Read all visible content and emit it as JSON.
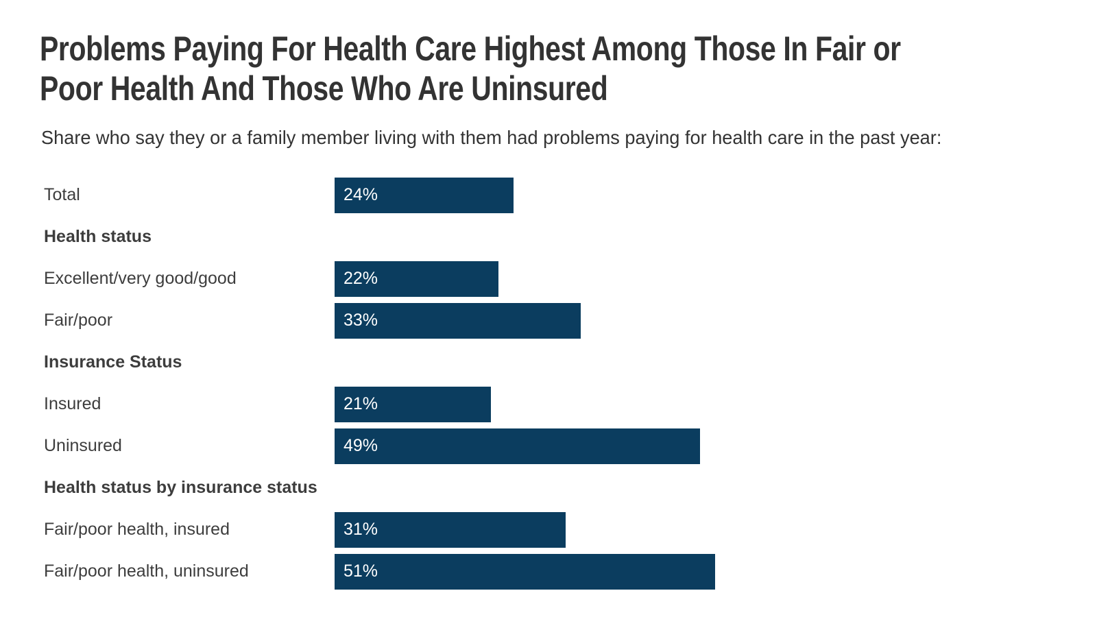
{
  "page": {
    "background_color": "#ffffff"
  },
  "header": {
    "title_line1": "Problems Paying For Health Care Highest Among Those In Fair or",
    "title_line2": "Poor Health And Those Who Are Uninsured",
    "subtitle": "Share who say they or a family member living with them had problems paying for health care in the past year:"
  },
  "chart_data": {
    "type": "bar",
    "orientation": "horizontal",
    "title": "Problems Paying For Health Care Highest Among Those In Fair or Poor Health And Those Who Are Uninsured",
    "subtitle": "Share who say they or a family member living with them had problems paying for health care in the past year:",
    "xlim": [
      0,
      100
    ],
    "value_suffix": "%",
    "grid": false,
    "legend": false,
    "axis_visible": false,
    "bar_color": "#0B3D5F",
    "value_label_color": "#ffffff",
    "label_color": "#3d3d3d",
    "categories": [
      "Total",
      "Excellent/very good/good",
      "Fair/poor",
      "Insured",
      "Uninsured",
      "Fair/poor health, insured",
      "Fair/poor health, uninsured"
    ],
    "values": [
      24,
      22,
      33,
      21,
      49,
      31,
      51
    ],
    "groups": [
      "Health status",
      "Insurance Status",
      "Health status by insurance status"
    ],
    "rows": [
      {
        "kind": "bar",
        "label": "Total",
        "value": 24,
        "display": "24%"
      },
      {
        "kind": "header",
        "label": "Health status"
      },
      {
        "kind": "bar",
        "label": "Excellent/very good/good",
        "value": 22,
        "display": "22%"
      },
      {
        "kind": "bar",
        "label": "Fair/poor",
        "value": 33,
        "display": "33%"
      },
      {
        "kind": "header",
        "label": "Insurance Status"
      },
      {
        "kind": "bar",
        "label": "Insured",
        "value": 21,
        "display": "21%"
      },
      {
        "kind": "bar",
        "label": "Uninsured",
        "value": 49,
        "display": "49%"
      },
      {
        "kind": "header",
        "label": "Health status by insurance status"
      },
      {
        "kind": "bar",
        "label": "Fair/poor health, insured",
        "value": 31,
        "display": "31%"
      },
      {
        "kind": "bar",
        "label": "Fair/poor health, uninsured",
        "value": 51,
        "display": "51%"
      }
    ]
  }
}
